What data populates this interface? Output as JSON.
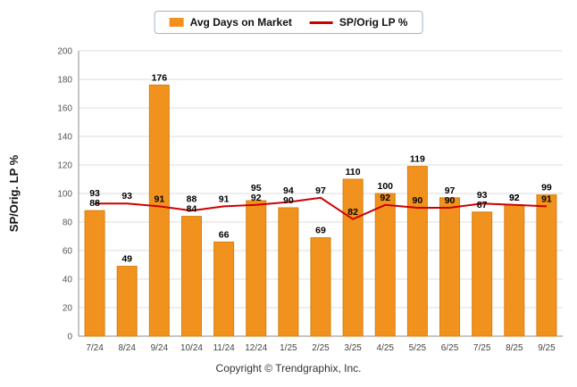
{
  "legend": {
    "bar_label": "Avg Days on Market",
    "line_label": "SP/Orig LP %"
  },
  "footer": {
    "copyright": "Copyright © Trendgraphix, Inc."
  },
  "colors": {
    "bar": "#F1921E",
    "bar_border": "#D87F10",
    "line": "#CC0000",
    "grid": "#DCDCDC",
    "axis": "#8C8C8C",
    "tick_text": "#555555",
    "value_text": "#000000"
  },
  "chart_data": {
    "type": "bar",
    "title": "",
    "categories": [
      "7/24",
      "8/24",
      "9/24",
      "10/24",
      "11/24",
      "12/24",
      "1/25",
      "2/25",
      "3/25",
      "4/25",
      "5/25",
      "6/25",
      "7/25",
      "8/25",
      "9/25"
    ],
    "series": [
      {
        "name": "Avg Days on Market",
        "type": "bar",
        "values": [
          88,
          49,
          176,
          84,
          66,
          95,
          90,
          69,
          110,
          100,
          119,
          97,
          87,
          92,
          99
        ]
      },
      {
        "name": "SP/Orig LP %",
        "type": "line",
        "values": [
          93,
          93,
          91,
          88,
          91,
          92,
          94,
          97,
          82,
          92,
          90,
          90,
          93,
          92,
          91
        ]
      }
    ],
    "xlabel": "",
    "ylabel": "SP/Orig. LP %",
    "ylim": [
      0,
      200
    ],
    "ytick_step": 20,
    "grid": true,
    "legend_position": "top"
  }
}
